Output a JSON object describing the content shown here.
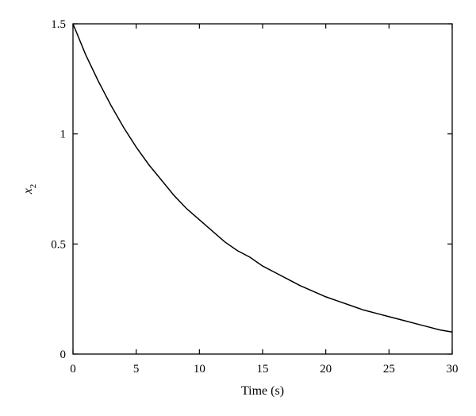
{
  "chart_data": {
    "type": "line",
    "title": "",
    "xlabel": "Time (s)",
    "ylabel_main": "x",
    "ylabel_sub": "2",
    "xlim": [
      0,
      30
    ],
    "ylim": [
      0,
      1.5
    ],
    "xticks": [
      0,
      5,
      10,
      15,
      20,
      25,
      30
    ],
    "yticks": [
      0,
      0.5,
      1,
      1.5
    ],
    "xtick_labels": [
      "0",
      "5",
      "10",
      "15",
      "20",
      "25",
      "30"
    ],
    "ytick_labels": [
      "0",
      "0.5",
      "1",
      "1.5"
    ],
    "grid": false,
    "legend": "none",
    "line_color": "#000000",
    "series": [
      {
        "x": [
          0,
          1,
          2,
          3,
          4,
          5,
          6,
          7,
          8,
          9,
          10,
          11,
          12,
          13,
          14,
          15,
          16,
          17,
          18,
          19,
          20,
          21,
          22,
          23,
          24,
          25,
          26,
          27,
          28,
          29,
          30
        ],
        "values": [
          1.5,
          1.36,
          1.24,
          1.13,
          1.03,
          0.94,
          0.86,
          0.79,
          0.72,
          0.66,
          0.61,
          0.56,
          0.51,
          0.47,
          0.44,
          0.4,
          0.37,
          0.34,
          0.31,
          0.285,
          0.26,
          0.24,
          0.22,
          0.2,
          0.185,
          0.17,
          0.155,
          0.14,
          0.125,
          0.11,
          0.1
        ]
      }
    ]
  }
}
